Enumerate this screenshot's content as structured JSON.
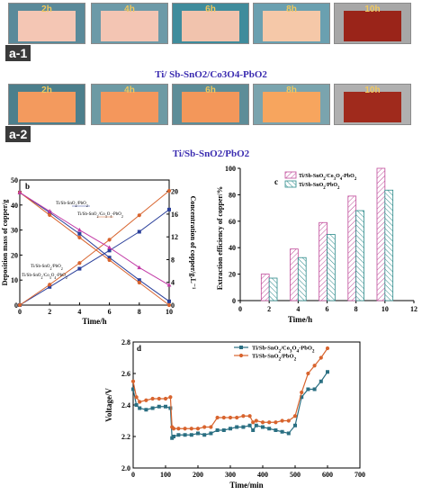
{
  "panel_a": {
    "row1": {
      "label": "a-1",
      "caption": "Ti/ Sb-SnO2/Co3O4-PbO2",
      "times": [
        "2h",
        "4h",
        "6h",
        "8h",
        "10h"
      ],
      "sheet_colors": [
        "#f4c6b4",
        "#f3c5b3",
        "#f1c3ad",
        "#f5c8a8",
        "#9a2419"
      ],
      "bg_colors": [
        "#5a8a9a",
        "#6c9aa8",
        "#3f8c9c",
        "#6aa0b0",
        "#a7a7a7"
      ]
    },
    "row2": {
      "label": "a-2",
      "caption": "Ti/Sb-SnO2/PbO2",
      "times": [
        "2h",
        "4h",
        "6h",
        "8h",
        "10h"
      ],
      "sheet_colors": [
        "#f39a5e",
        "#f4975c",
        "#f3975a",
        "#f7a55e",
        "#a02a1c"
      ],
      "bg_colors": [
        "#4c7f8c",
        "#6d9aa4",
        "#5d8d98",
        "#7aa4ae",
        "#b0b0b0"
      ]
    }
  },
  "chart_data": [
    {
      "panel": "b",
      "type": "line",
      "xlabel": "Time/h",
      "ylabel_left": "Deposition mass of copper/g",
      "ylabel_right": "Concentration of copper/g.L⁻¹",
      "x": [
        0,
        2,
        4,
        6,
        8,
        10
      ],
      "xlim": [
        0,
        10
      ],
      "xticks": [
        0,
        2,
        4,
        6,
        8,
        10
      ],
      "ylim_left": [
        0,
        50
      ],
      "yticks_left": [
        0,
        10,
        20,
        30,
        40,
        50
      ],
      "ylim_right": [
        0,
        22
      ],
      "yticks_right": [
        0,
        4,
        8,
        12,
        16,
        20
      ],
      "series": [
        {
          "name": "Ti/Sb-SnO2/PbO2",
          "axis": "left",
          "marker": "square",
          "color": "#2a3f9a",
          "values": [
            45,
            37,
            28.5,
            19,
            10,
            1.5
          ]
        },
        {
          "name": "Ti/Sb-SnO2/Co3O4-PbO2",
          "axis": "left",
          "marker": "circle",
          "color": "#d8642e",
          "values": [
            45,
            36,
            27,
            18,
            9,
            0
          ]
        },
        {
          "name": "Ti/Sb-SnO2/PbO2",
          "axis": "right",
          "marker": "square",
          "color": "#2a3f9a",
          "values": [
            0,
            3.2,
            6.4,
            9.6,
            12.9,
            16.8
          ]
        },
        {
          "name": "Ti/Sb-SnO2/Co3O4-PbO2",
          "axis": "right",
          "marker": "circle",
          "color": "#d8642e",
          "values": [
            0,
            3.6,
            7.4,
            11.5,
            15.8,
            20.1
          ]
        },
        {
          "name": "",
          "axis": "left",
          "marker": "triangle",
          "color": "#c23aa6",
          "values": [
            45,
            37.5,
            30,
            23,
            15,
            8
          ]
        }
      ],
      "annotations": [
        "Ti/Sb-SnO2/PbO2",
        "Ti/Sb-SnO2/Co3O4-PbO2",
        "Ti/Sb-SnO2/PbO2",
        "Ti/Sb-SnO2/Co3O4-PbO2"
      ]
    },
    {
      "panel": "c",
      "type": "bar",
      "xlabel": "Time/h",
      "ylabel": "Extraction efficiency of copper/%",
      "categories": [
        2,
        4,
        6,
        8,
        10
      ],
      "xlim": [
        0,
        12
      ],
      "xticks": [
        0,
        2,
        4,
        6,
        8,
        10,
        12
      ],
      "ylim": [
        0,
        100
      ],
      "yticks": [
        0,
        20,
        40,
        60,
        80,
        100
      ],
      "legend_position": "top-left",
      "series": [
        {
          "name": "Ti/Sb-SnO2/Co3O4-PbO2",
          "color": "#c04b9a",
          "values": [
            20,
            39,
            59,
            79,
            100
          ]
        },
        {
          "name": "Ti/Sb-SnO2/PbO2",
          "color": "#2b8a8a",
          "values": [
            17,
            32.5,
            50,
            68,
            83.5
          ]
        }
      ]
    },
    {
      "panel": "d",
      "type": "line",
      "xlabel": "Time/min",
      "ylabel": "Voltage/V",
      "xlim": [
        0,
        700
      ],
      "xticks": [
        0,
        100,
        200,
        300,
        400,
        500,
        600,
        700
      ],
      "ylim": [
        2.0,
        2.8
      ],
      "yticks": [
        2.0,
        2.2,
        2.4,
        2.6,
        2.8
      ],
      "legend_position": "top-right",
      "series": [
        {
          "name": "Ti/Sb-SnO2/Co3O4-PbO2",
          "color": "#2a6f82",
          "marker": "square",
          "x": [
            0,
            10,
            20,
            40,
            60,
            80,
            100,
            115,
            120,
            125,
            140,
            160,
            180,
            200,
            220,
            240,
            260,
            280,
            300,
            320,
            340,
            360,
            370,
            380,
            400,
            420,
            440,
            460,
            480,
            500,
            520,
            540,
            560,
            580,
            600
          ],
          "values": [
            2.5,
            2.4,
            2.38,
            2.37,
            2.38,
            2.39,
            2.39,
            2.38,
            2.19,
            2.2,
            2.21,
            2.21,
            2.21,
            2.22,
            2.21,
            2.22,
            2.24,
            2.24,
            2.25,
            2.26,
            2.26,
            2.27,
            2.24,
            2.27,
            2.26,
            2.25,
            2.24,
            2.23,
            2.22,
            2.27,
            2.45,
            2.5,
            2.5,
            2.55,
            2.61
          ]
        },
        {
          "name": "Ti/Sb-SnO2/PbO2",
          "color": "#d8642e",
          "marker": "circle",
          "x": [
            0,
            10,
            20,
            40,
            60,
            80,
            100,
            115,
            120,
            125,
            140,
            160,
            180,
            200,
            220,
            240,
            260,
            280,
            300,
            320,
            340,
            360,
            370,
            380,
            400,
            420,
            440,
            460,
            480,
            500,
            520,
            540,
            560,
            580,
            600
          ],
          "values": [
            2.55,
            2.45,
            2.42,
            2.43,
            2.44,
            2.44,
            2.44,
            2.45,
            2.26,
            2.25,
            2.25,
            2.25,
            2.25,
            2.25,
            2.26,
            2.26,
            2.32,
            2.32,
            2.32,
            2.32,
            2.33,
            2.33,
            2.29,
            2.3,
            2.29,
            2.29,
            2.29,
            2.3,
            2.3,
            2.33,
            2.48,
            2.6,
            2.65,
            2.7,
            2.76
          ]
        }
      ]
    }
  ],
  "panel_letters": {
    "b": "b",
    "c": "c",
    "d": "d"
  }
}
